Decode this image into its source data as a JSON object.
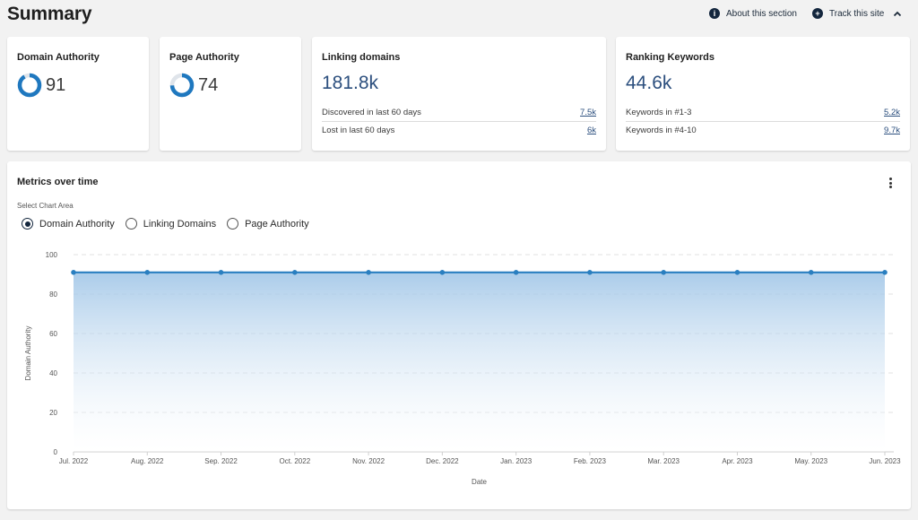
{
  "header": {
    "title": "Summary",
    "about_label": "About this section",
    "track_label": "Track this site",
    "about_icon": "info-icon",
    "track_icon": "plus-circle-icon",
    "collapse_icon": "chevron-up-icon"
  },
  "cards": {
    "domain_authority": {
      "title": "Domain Authority",
      "value": "91",
      "progress": 0.91
    },
    "page_authority": {
      "title": "Page Authority",
      "value": "74",
      "progress": 0.74
    },
    "linking_domains": {
      "title": "Linking domains",
      "value": "181.8k",
      "rows": [
        {
          "label": "Discovered in last 60 days",
          "value": "7.5k"
        },
        {
          "label": "Lost in last 60 days",
          "value": "6k"
        }
      ]
    },
    "ranking_keywords": {
      "title": "Ranking Keywords",
      "value": "44.6k",
      "rows": [
        {
          "label": "Keywords in #1-3",
          "value": "5.2k"
        },
        {
          "label": "Keywords in #4-10",
          "value": "9.7k"
        }
      ]
    }
  },
  "metrics": {
    "title": "Metrics over time",
    "select_label": "Select Chart Area",
    "options": [
      "Domain Authority",
      "Linking Domains",
      "Page Authority"
    ],
    "selected": "Domain Authority",
    "menu_icon": "kebab-menu-icon"
  },
  "colors": {
    "accent": "#13263d",
    "line": "#2a7fc0",
    "link": "#2c4f7e",
    "donut_track": "#dfe4ea",
    "donut_fill": "#1f78bf"
  },
  "chart_data": {
    "type": "area",
    "xlabel": "Date",
    "ylabel": "Domain Authority",
    "ylim": [
      0,
      100
    ],
    "yticks": [
      0,
      20,
      40,
      60,
      80,
      100
    ],
    "grid": true,
    "categories": [
      "Jul. 2022",
      "Aug. 2022",
      "Sep. 2022",
      "Oct. 2022",
      "Nov. 2022",
      "Dec. 2022",
      "Jan. 2023",
      "Feb. 2023",
      "Mar. 2023",
      "Apr. 2023",
      "May. 2023",
      "Jun. 2023"
    ],
    "series": [
      {
        "values": [
          91,
          91,
          91,
          91,
          91,
          91,
          91,
          91,
          91,
          91,
          91,
          91
        ]
      }
    ]
  }
}
